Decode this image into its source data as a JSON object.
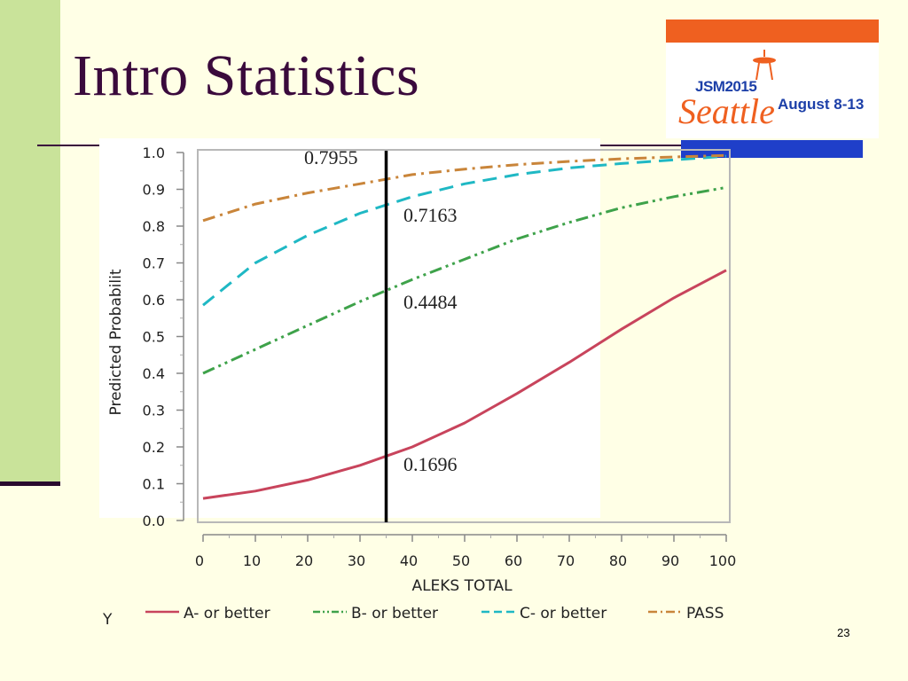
{
  "slide": {
    "title": "Intro Statistics",
    "page_number": "23"
  },
  "logo": {
    "line1": "JSM2015",
    "line2": "Seattle",
    "line3": "August 8-13"
  },
  "colors": {
    "a_or_better": "#c8445c",
    "b_or_better": "#3ea24a",
    "c_or_better": "#1fb8c4",
    "pass": "#c9853a"
  },
  "chart_data": {
    "type": "line",
    "xlabel": "ALEKS TOTAL",
    "ylabel": "Predicted Probabilit",
    "xlim": [
      0,
      100
    ],
    "ylim": [
      0,
      1
    ],
    "x_ticks": [
      0,
      10,
      20,
      30,
      40,
      50,
      60,
      70,
      80,
      90,
      100
    ],
    "y_ticks": [
      "0.0",
      "0.1",
      "0.2",
      "0.3",
      "0.4",
      "0.5",
      "0.6",
      "0.7",
      "0.8",
      "0.9",
      "1.0"
    ],
    "legend_prefix": "Y",
    "legend_position": "bottom",
    "reference_line_x": 35,
    "x": [
      0,
      10,
      20,
      30,
      35,
      40,
      50,
      60,
      70,
      80,
      90,
      100
    ],
    "series": [
      {
        "name": "A- or better",
        "style": "solid",
        "values": [
          0.06,
          0.08,
          0.11,
          0.15,
          0.1696,
          0.2,
          0.265,
          0.345,
          0.43,
          0.52,
          0.605,
          0.68
        ]
      },
      {
        "name": "B- or better",
        "style": "dashdotdot",
        "values": [
          0.4,
          0.465,
          0.53,
          0.595,
          0.4484,
          0.655,
          0.71,
          0.765,
          0.81,
          0.85,
          0.88,
          0.905
        ]
      },
      {
        "name": "C- or better",
        "style": "dash",
        "values": [
          0.585,
          0.7,
          0.775,
          0.835,
          0.7163,
          0.88,
          0.915,
          0.94,
          0.958,
          0.97,
          0.98,
          0.99
        ]
      },
      {
        "name": "PASS",
        "style": "dashdot",
        "values": [
          0.815,
          0.86,
          0.89,
          0.915,
          0.7955,
          0.94,
          0.955,
          0.967,
          0.976,
          0.983,
          0.988,
          0.992
        ]
      }
    ],
    "annotations": [
      "0.7955",
      "0.7163",
      "0.4484",
      "0.1696"
    ]
  }
}
